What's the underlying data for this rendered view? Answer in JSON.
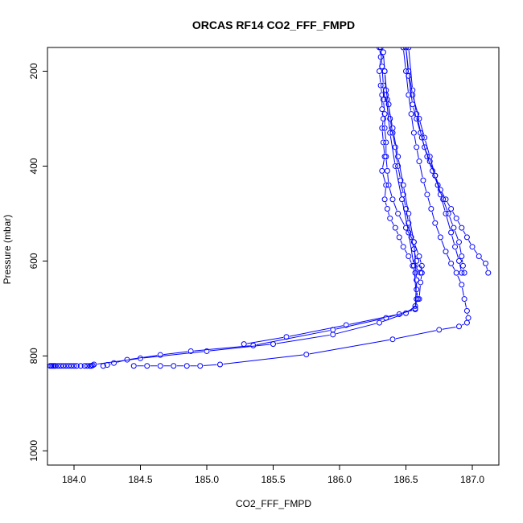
{
  "chart_data": {
    "type": "line",
    "title": "ORCAS RF14 CO2_FFF_FMPD",
    "xlabel": "CO2_FFF_FMPD",
    "ylabel": "Pressure (mbar)",
    "xlim": [
      183.8,
      187.2
    ],
    "ylim": [
      1030,
      150
    ],
    "y_reversed": true,
    "xticks": [
      184.0,
      184.5,
      185.0,
      185.5,
      186.0,
      186.5,
      187.0
    ],
    "xtick_labels": [
      "184.0",
      "184.5",
      "185.0",
      "185.5",
      "186.0",
      "186.5",
      "187.0"
    ],
    "yticks": [
      200,
      400,
      600,
      800,
      1000
    ],
    "ytick_labels": [
      "200",
      "400",
      "600",
      "800",
      "1000"
    ],
    "grid": false,
    "legend": "none",
    "series_color": "#0000ff",
    "series": [
      {
        "x": [
          186.3,
          186.31,
          186.3,
          186.31,
          186.32,
          186.32,
          186.33,
          186.32,
          186.33,
          186.34,
          186.32,
          186.35,
          186.34,
          186.36,
          186.38,
          186.42,
          186.45,
          186.48,
          186.52,
          186.55,
          186.57,
          186.58,
          186.58,
          186.59,
          186.57,
          186.5,
          186.3,
          185.95,
          185.5,
          185.0,
          184.5,
          184.15,
          184.14,
          184.13,
          184.12,
          184.1,
          184.08,
          184.05,
          184.02,
          184.0,
          183.98,
          183.96,
          183.94,
          183.92,
          183.9,
          183.88,
          183.86,
          183.85,
          183.84,
          183.83,
          183.82
        ],
        "y": [
          150,
          170,
          200,
          230,
          250,
          280,
          300,
          320,
          350,
          380,
          410,
          440,
          470,
          490,
          510,
          530,
          550,
          570,
          590,
          610,
          625,
          640,
          660,
          680,
          695,
          710,
          730,
          755,
          775,
          790,
          805,
          818,
          820,
          821,
          821,
          821,
          821,
          821,
          821,
          821,
          821,
          821,
          821,
          821,
          821,
          821,
          821,
          821,
          821,
          821,
          821
        ]
      },
      {
        "x": [
          186.31,
          186.32,
          186.33,
          186.33,
          186.34,
          186.34,
          186.35,
          186.35,
          186.36,
          186.37,
          186.4,
          186.44,
          186.5,
          186.56,
          186.6,
          186.62,
          186.62,
          186.61,
          186.6
        ],
        "y": [
          150,
          190,
          230,
          260,
          290,
          320,
          350,
          380,
          410,
          440,
          470,
          500,
          530,
          560,
          590,
          610,
          625,
          645,
          680
        ]
      },
      {
        "x": [
          186.33,
          186.34,
          186.35,
          186.37,
          186.38,
          186.4,
          186.42,
          186.44,
          186.46,
          186.48,
          186.5,
          186.52,
          186.54,
          186.56,
          186.58,
          186.6,
          186.61
        ],
        "y": [
          160,
          200,
          240,
          270,
          300,
          330,
          360,
          400,
          430,
          460,
          490,
          520,
          550,
          575,
          600,
          615,
          625
        ]
      },
      {
        "x": [
          186.5,
          186.52,
          186.55,
          186.58,
          186.61,
          186.64,
          186.68,
          186.72,
          186.76,
          186.8,
          186.84,
          186.88,
          186.92,
          186.96,
          187.0,
          187.05,
          187.1,
          187.12
        ],
        "y": [
          150,
          210,
          270,
          300,
          330,
          360,
          390,
          420,
          450,
          470,
          490,
          510,
          530,
          550,
          570,
          590,
          605,
          625
        ]
      },
      {
        "x": [
          186.48,
          186.5,
          186.52,
          186.54,
          186.56,
          186.58,
          186.6,
          186.63,
          186.66,
          186.69,
          186.72,
          186.76,
          186.8,
          186.84,
          186.88,
          186.92,
          186.94,
          186.96,
          186.97,
          186.96,
          186.9,
          186.75,
          186.4,
          185.75,
          185.1,
          184.95,
          184.85,
          184.75,
          184.65,
          184.55,
          184.45
        ],
        "y": [
          150,
          200,
          250,
          290,
          330,
          360,
          390,
          430,
          460,
          490,
          520,
          550,
          580,
          605,
          625,
          650,
          680,
          705,
          720,
          730,
          738,
          745,
          765,
          797,
          818,
          821,
          821,
          821,
          821,
          821,
          821
        ]
      },
      {
        "x": [
          186.52,
          186.55,
          186.58,
          186.62,
          186.66,
          186.7,
          186.74,
          186.78,
          186.82,
          186.86,
          186.9,
          186.92,
          186.93,
          186.94
        ],
        "y": [
          150,
          240,
          290,
          340,
          380,
          410,
          440,
          470,
          500,
          530,
          560,
          590,
          610,
          625
        ]
      },
      {
        "x": [
          186.5,
          186.52,
          186.55,
          186.6,
          186.64,
          186.68,
          186.72,
          186.76,
          186.8,
          186.84,
          186.87,
          186.9,
          186.92
        ],
        "y": [
          150,
          200,
          250,
          300,
          340,
          380,
          420,
          460,
          500,
          540,
          570,
          600,
          625
        ]
      },
      {
        "x": [
          186.34,
          186.36,
          186.4,
          186.44,
          186.48,
          186.52,
          186.56,
          186.58,
          186.57,
          186.45,
          186.05,
          185.6,
          185.28
        ],
        "y": [
          200,
          260,
          320,
          380,
          440,
          500,
          560,
          640,
          700,
          712,
          735,
          760,
          775
        ]
      },
      {
        "x": [
          186.35,
          186.38,
          186.42,
          186.47,
          186.52,
          186.56,
          186.58,
          186.57,
          186.35,
          185.95,
          185.35,
          184.88,
          184.65,
          184.4,
          184.3,
          184.25,
          184.22
        ],
        "y": [
          250,
          330,
          400,
          470,
          540,
          610,
          680,
          702,
          720,
          745,
          778,
          790,
          798,
          808,
          815,
          819,
          821
        ]
      }
    ]
  }
}
